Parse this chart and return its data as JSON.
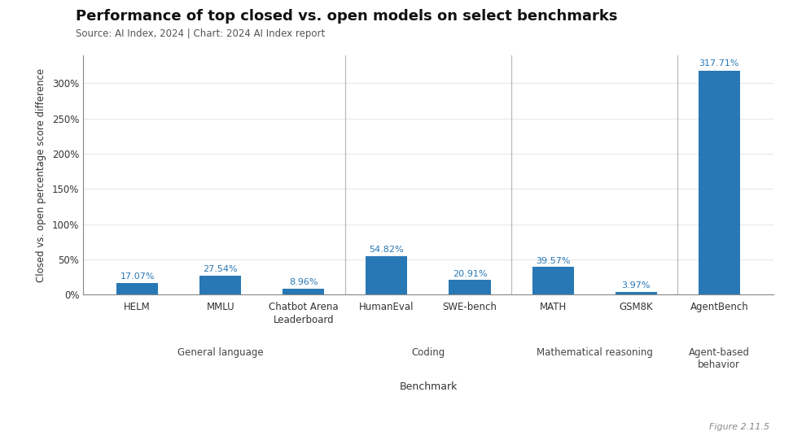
{
  "title": "Performance of top closed vs. open models on select benchmarks",
  "subtitle": "Source: AI Index, 2024 | Chart: 2024 AI Index report",
  "figure_label": "Figure 2.11.5",
  "ylabel": "Closed vs. open percentage score difference",
  "xlabel": "Benchmark",
  "bar_color": "#2878b5",
  "background_color": "#ffffff",
  "plot_bg_color": "#f0f0f0",
  "bars": [
    {
      "label": "HELM",
      "value": 17.07,
      "group_idx": 0
    },
    {
      "label": "MMLU",
      "value": 27.54,
      "group_idx": 0
    },
    {
      "label": "Chatbot Arena\nLeaderboard",
      "value": 8.96,
      "group_idx": 0
    },
    {
      "label": "HumanEval",
      "value": 54.82,
      "group_idx": 1
    },
    {
      "label": "SWE-bench",
      "value": 20.91,
      "group_idx": 1
    },
    {
      "label": "MATH",
      "value": 39.57,
      "group_idx": 2
    },
    {
      "label": "GSM8K",
      "value": 3.97,
      "group_idx": 2
    },
    {
      "label": "AgentBench",
      "value": 317.71,
      "group_idx": 3
    }
  ],
  "groups": [
    {
      "name": "General language",
      "indices": [
        0,
        1,
        2
      ]
    },
    {
      "name": "Coding",
      "indices": [
        3,
        4
      ]
    },
    {
      "name": "Mathematical reasoning",
      "indices": [
        5,
        6
      ]
    },
    {
      "name": "Agent-based\nbehavior",
      "indices": [
        7
      ]
    }
  ],
  "ylim": [
    0,
    340
  ],
  "yticks": [
    0,
    50,
    100,
    150,
    200,
    250,
    300
  ],
  "title_fontsize": 13,
  "subtitle_fontsize": 8.5,
  "ylabel_fontsize": 8.5,
  "xlabel_fontsize": 9,
  "tick_fontsize": 8.5,
  "value_fontsize": 8,
  "group_fontsize": 8.5,
  "bar_width": 0.5,
  "sep_color": "#bbbbbb",
  "grid_color": "#e8e8e8"
}
